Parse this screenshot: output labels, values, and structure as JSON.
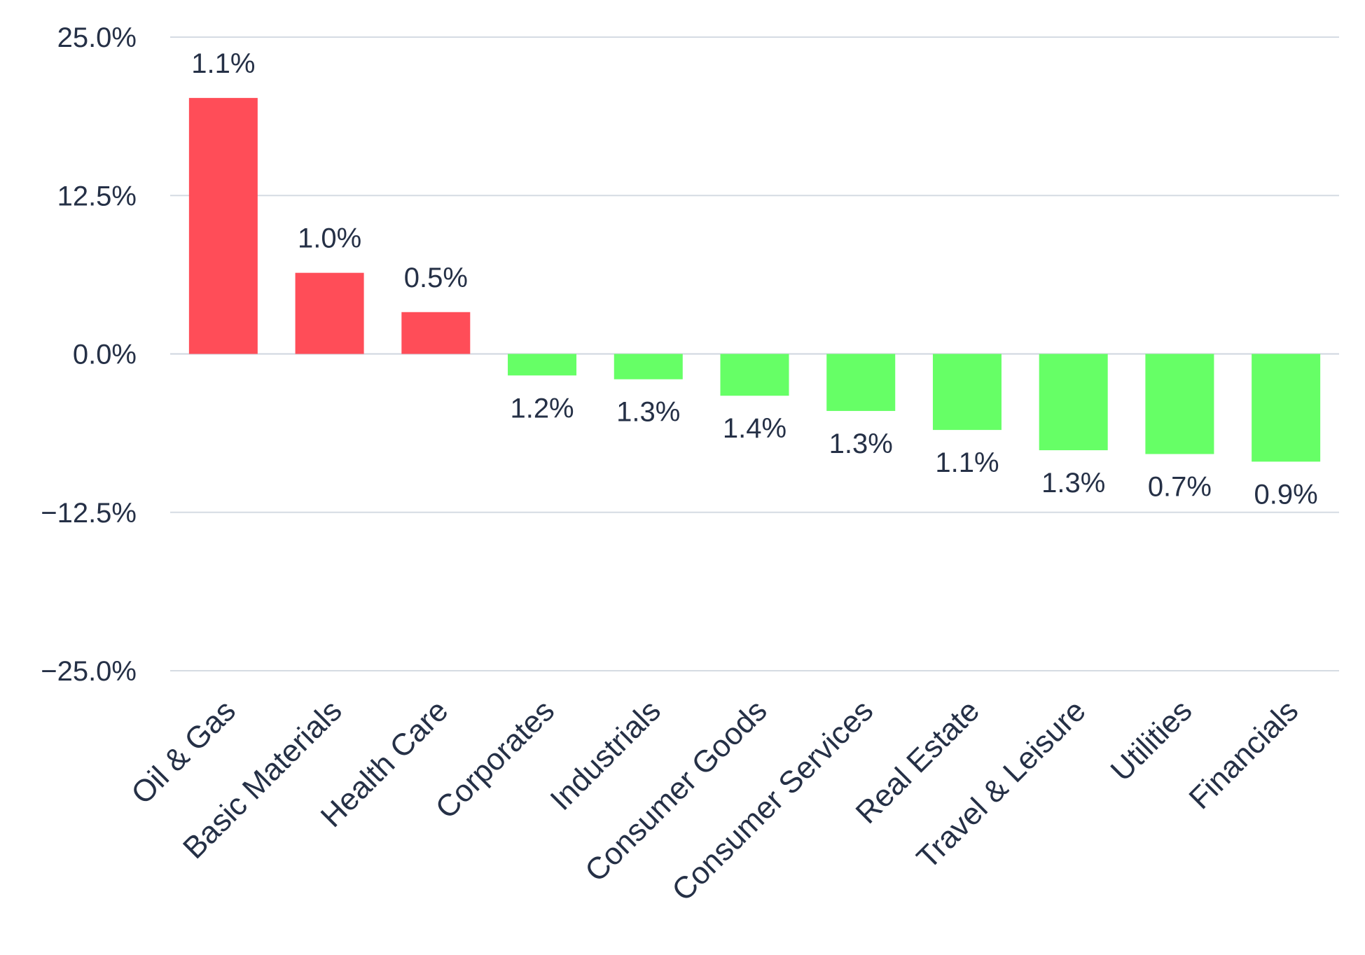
{
  "chart_data": {
    "type": "bar",
    "categories": [
      "Oil & Gas",
      "Basic Materials",
      "Health Care",
      "Corporates",
      "Industrials",
      "Consumer Goods",
      "Consumer Services",
      "Real Estate",
      "Travel & Leisure",
      "Utilities",
      "Financials"
    ],
    "values": [
      20.2,
      6.4,
      3.3,
      -1.7,
      -2.0,
      -3.3,
      -4.5,
      -6.0,
      -7.6,
      -7.9,
      -8.5
    ],
    "data_labels": [
      "1.1%",
      "1.0%",
      "0.5%",
      "1.2%",
      "1.3%",
      "1.4%",
      "1.3%",
      "1.1%",
      "1.3%",
      "0.7%",
      "0.9%"
    ],
    "yticks": [
      25.0,
      12.5,
      0.0,
      -12.5,
      -25.0
    ],
    "ytick_labels": [
      "25.0%",
      "12.5%",
      "0.0%",
      "−12.5%",
      "−25.0%"
    ],
    "ylim": [
      -25,
      25
    ],
    "title": "",
    "xlabel": "",
    "ylabel": "",
    "grid": true,
    "legend": "none",
    "colors": {
      "positive": "#ff4d58",
      "negative": "#66ff66",
      "text": "#253046",
      "grid": "#d5dbe3"
    }
  }
}
